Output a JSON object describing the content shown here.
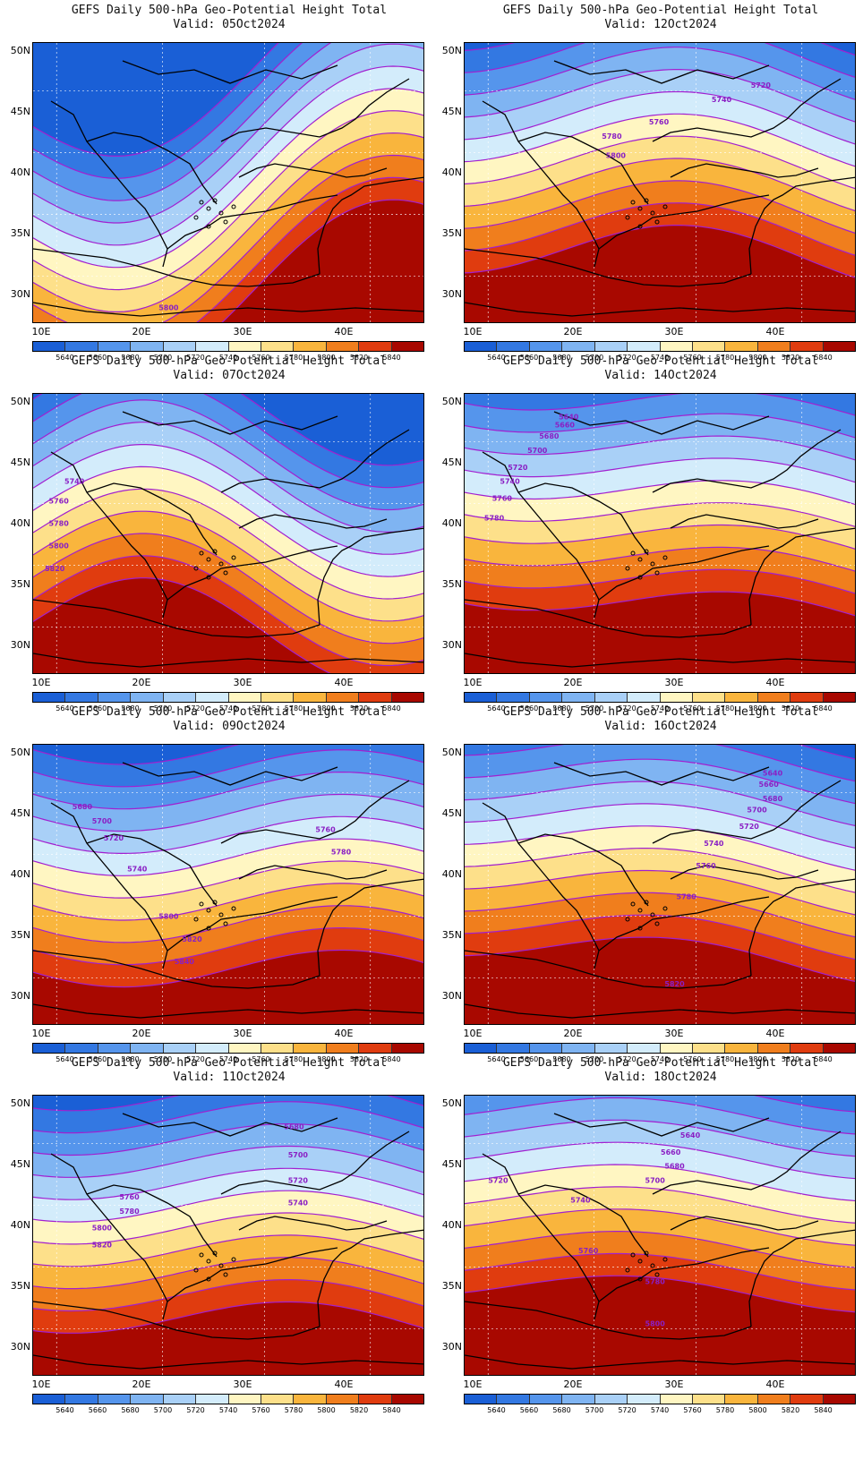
{
  "panels": [
    {
      "title": "GEFS Daily 500-hPa Geo-Potential Height Total",
      "valid": "Valid: 05Oct2024",
      "contour_labels": [
        "5800"
      ]
    },
    {
      "title": "GEFS Daily 500-hPa Geo-Potential Height Total",
      "valid": "Valid: 12Oct2024",
      "contour_labels": [
        "5720",
        "5740",
        "5760",
        "5780",
        "5800"
      ]
    },
    {
      "title": "GEFS Daily 500-hPa Geo-Potential Height Total",
      "valid": "Valid: 07Oct2024",
      "contour_labels": [
        "5740",
        "5760",
        "5780",
        "5800",
        "5820"
      ]
    },
    {
      "title": "GEFS Daily 500-hPa Geo-Potential Height Total",
      "valid": "Valid: 14Oct2024",
      "contour_labels": [
        "5640",
        "5660",
        "5680",
        "5700",
        "5720",
        "5740",
        "5760",
        "5780"
      ]
    },
    {
      "title": "GEFS Daily 500-hPa Geo-Potential Height Total",
      "valid": "Valid: 09Oct2024",
      "contour_labels": [
        "5680",
        "5700",
        "5720",
        "5740",
        "5760",
        "5780",
        "5800",
        "5820",
        "5840"
      ]
    },
    {
      "title": "GEFS Daily 500-hPa Geo-Potential Height Total",
      "valid": "Valid: 16Oct2024",
      "contour_labels": [
        "5640",
        "5660",
        "5680",
        "5700",
        "5720",
        "5740",
        "5760",
        "5780",
        "5820"
      ]
    },
    {
      "title": "GEFS Daily 500-hPa Geo-Potential Height Total",
      "valid": "Valid: 11Oct2024",
      "contour_labels": [
        "5680",
        "5700",
        "5720",
        "5740",
        "5760",
        "5780",
        "5800",
        "5820"
      ]
    },
    {
      "title": "GEFS Daily 500-hPa Geo-Potential Height Total",
      "valid": "Valid: 18Oct2024",
      "contour_labels": [
        "5640",
        "5660",
        "5680",
        "5700",
        "5720",
        "5740",
        "5760",
        "5780",
        "5800"
      ]
    }
  ],
  "axes": {
    "lat_labels": [
      "50N",
      "45N",
      "40N",
      "35N",
      "30N"
    ],
    "lon_labels": [
      "10E",
      "20E",
      "30E",
      "40E"
    ]
  },
  "colorbar": {
    "labels": [
      "5640",
      "5660",
      "5680",
      "5700",
      "5720",
      "5740",
      "5760",
      "5780",
      "5800",
      "5820",
      "5840"
    ],
    "colors": [
      "#1a5fd6",
      "#3378e2",
      "#5595ec",
      "#7fb4f2",
      "#a9d0f7",
      "#d3ecfb",
      "#fff6c2",
      "#fde08a",
      "#f9b53d",
      "#f07e1d",
      "#e03c0f",
      "#a80800"
    ]
  },
  "colors": {
    "contour_line": "#a21fd0",
    "coastline": "#000000"
  }
}
